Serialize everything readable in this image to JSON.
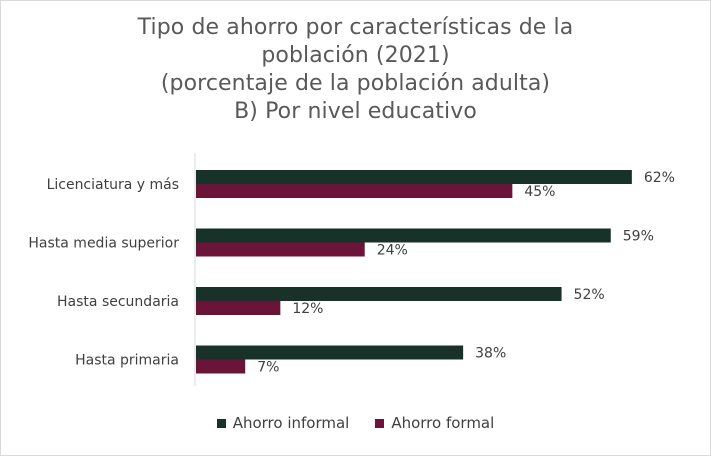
{
  "chart_data": {
    "type": "bar",
    "orientation": "horizontal",
    "title_lines": [
      "Tipo de ahorro por características de la",
      "población (2021)",
      "(porcentaje de la población adulta)",
      "B) Por nivel educativo"
    ],
    "categories": [
      "Licenciatura y más",
      "Hasta media superior",
      "Hasta secundaria",
      "Hasta primaria"
    ],
    "series": [
      {
        "name": "Ahorro informal",
        "values": [
          62,
          59,
          52,
          38
        ],
        "labels": [
          "62%",
          "59%",
          "52%",
          "38%"
        ],
        "color": "#18322a"
      },
      {
        "name": "Ahorro formal",
        "values": [
          45,
          24,
          12,
          7
        ],
        "labels": [
          "45%",
          "24%",
          "12%",
          "7%"
        ],
        "color": "#6a1437"
      }
    ],
    "xlim": [
      0,
      70
    ],
    "grid": false,
    "legend_position": "bottom"
  }
}
